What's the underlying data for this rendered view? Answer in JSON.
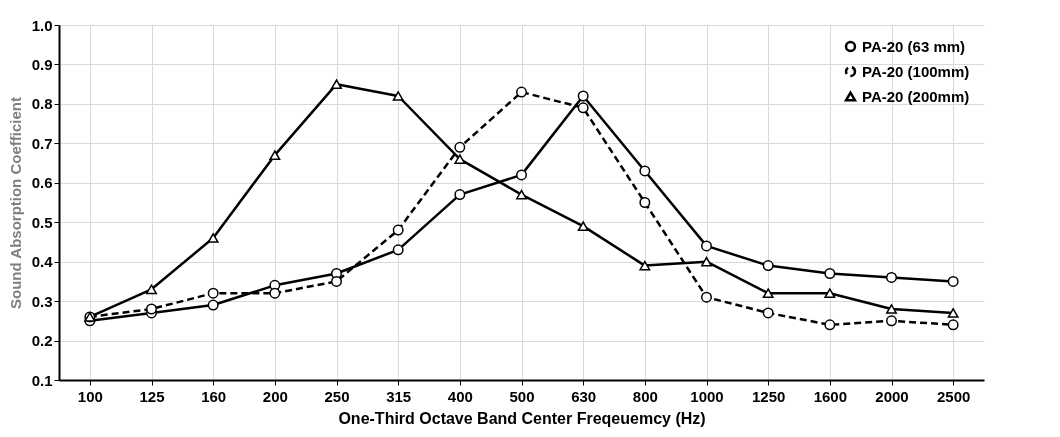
{
  "chart_data": {
    "type": "line",
    "xlabel": "One-Third Octave Band Center Freqeuemcy (Hz)",
    "ylabel": "Sound Absorption Coefficient",
    "categories": [
      "100",
      "125",
      "160",
      "200",
      "250",
      "315",
      "400",
      "500",
      "630",
      "800",
      "1000",
      "1250",
      "1600",
      "2000",
      "2500"
    ],
    "series": [
      {
        "name": "PA-20 (63 mm)",
        "color": "#000000",
        "marker": "circle",
        "line_style": "solid",
        "values": [
          0.25,
          0.27,
          0.29,
          0.34,
          0.37,
          0.43,
          0.57,
          0.62,
          0.82,
          0.63,
          0.44,
          0.39,
          0.37,
          0.36,
          0.35
        ]
      },
      {
        "name": "PA-20 (100mm)",
        "color": "#000000",
        "marker": "circle",
        "line_style": "dashed",
        "values": [
          0.26,
          0.28,
          0.32,
          0.32,
          0.35,
          0.48,
          0.69,
          0.83,
          0.79,
          0.55,
          0.31,
          0.27,
          0.24,
          0.25,
          0.24
        ]
      },
      {
        "name": "PA-20 (200mm)",
        "color": "#000000",
        "marker": "triangle",
        "line_style": "solid",
        "values": [
          0.26,
          0.33,
          0.46,
          0.67,
          0.85,
          0.82,
          0.66,
          0.57,
          0.49,
          0.39,
          0.4,
          0.32,
          0.32,
          0.28,
          0.27
        ]
      }
    ],
    "ylim": [
      0.1,
      1.0
    ],
    "yticks": [
      {
        "value": 0.1,
        "label": "0.1"
      },
      {
        "value": 0.2,
        "label": "0.2"
      },
      {
        "value": 0.3,
        "label": "0.3"
      },
      {
        "value": 0.4,
        "label": "0.4"
      },
      {
        "value": 0.5,
        "label": "0.5"
      },
      {
        "value": 0.6,
        "label": "0.6"
      },
      {
        "value": 0.7,
        "label": "0.7"
      },
      {
        "value": 0.8,
        "label": "0.8"
      },
      {
        "value": 0.9,
        "label": "0.9"
      },
      {
        "value": 1.0,
        "label": "1.0"
      }
    ],
    "grid": true,
    "legend": "top right"
  }
}
